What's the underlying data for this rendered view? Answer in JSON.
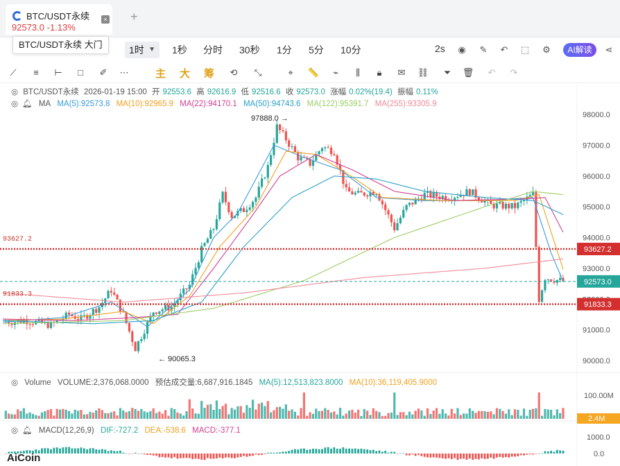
{
  "tab": {
    "symbol": "BTC/USDT永续",
    "price": "92573.0",
    "change": "-1.13%",
    "close": "×",
    "add": "+"
  },
  "tooltip": "BTC/USDT永续 大门",
  "intervals": {
    "active": "1时",
    "items": [
      "1秒",
      "分时",
      "30秒",
      "1分",
      "5分",
      "10分"
    ],
    "refresh": "2s",
    "ai_label": "AI解读"
  },
  "draw_toolbar": {
    "chars": [
      "主",
      "大",
      "筹"
    ]
  },
  "info": {
    "symbol": "BTC/USDT永续",
    "datetime": "2026-01-19 15:00",
    "open_label": "开",
    "open": "92553.6",
    "high_label": "高",
    "high": "92616.9",
    "low_label": "低",
    "low": "92516.6",
    "close_label": "收",
    "close": "92573.0",
    "change_label": "涨幅",
    "change": "0.02%(19.4)",
    "amp_label": "振幅",
    "amp": "0.11%"
  },
  "ma_legend": {
    "label": "MA",
    "items": [
      {
        "text": "MA(5):92573.8",
        "color": "#3a9ad9"
      },
      {
        "text": "MA(10):92965.9",
        "color": "#f0a020"
      },
      {
        "text": "MA(22):94170.1",
        "color": "#d43f8d"
      },
      {
        "text": "MA(50):94743.6",
        "color": "#2aa0c8"
      },
      {
        "text": "MA(122):95391.7",
        "color": "#9ccc65"
      },
      {
        "text": "MA(255):93305.9",
        "color": "#f08a9a"
      }
    ]
  },
  "volume_legend": {
    "label": "Volume",
    "volume": "VOLUME:2,376,068.0000",
    "estimate": "预估成交量:6,687,916.1845",
    "ma5": "MA(5):12,513,823.8000",
    "ma10": "MA(10):36,119,405.9000",
    "axis_top": "100.00M",
    "badge": "2.4M"
  },
  "macd_legend": {
    "label": "MACD(12,26,9)",
    "dif": "DIF:-727.2",
    "dea": "DEA:-538.6",
    "macd": "MACD:-377.1",
    "axis_top": "1000.0",
    "axis_zero": "0.0"
  },
  "brand": "AiCoin",
  "colors": {
    "up": "#26a69a",
    "down": "#ef5350",
    "red_line": "#d32f2f",
    "price_line": "#26a69a",
    "accent": "#5b6cf6"
  },
  "chart_data": {
    "type": "candlestick",
    "interval": "1时",
    "y_ticks": [
      90000,
      91000,
      92000,
      93000,
      94000,
      95000,
      96000,
      97000,
      98000
    ],
    "y_tick_labels": [
      "90000.0",
      "91000.0",
      "92000.0",
      "93000.0",
      "94000.0",
      "95000.0",
      "96000.0",
      "97000.0",
      "98000.0"
    ],
    "ylim": [
      89650,
      98200
    ],
    "high_marker": {
      "value": 97888.0,
      "label": "97888.0"
    },
    "low_marker": {
      "value": 90065.3,
      "label": "90065.3"
    },
    "horizontal_lines": [
      {
        "value": 93627.2,
        "label": "93627.2"
      },
      {
        "value": 91833.3,
        "label": "91833.3"
      }
    ],
    "current_price": {
      "value": 92573.0,
      "label": "92573.0"
    },
    "close_path": [
      [
        0,
        91250
      ],
      [
        8,
        91300
      ],
      [
        16,
        91150
      ],
      [
        22,
        91500
      ],
      [
        26,
        91350
      ],
      [
        32,
        91750
      ],
      [
        36,
        92300
      ],
      [
        40,
        91500
      ],
      [
        44,
        90400
      ],
      [
        50,
        91600
      ],
      [
        56,
        91750
      ],
      [
        62,
        92450
      ],
      [
        66,
        93600
      ],
      [
        70,
        94300
      ],
      [
        73,
        95400
      ],
      [
        76,
        94700
      ],
      [
        80,
        94900
      ],
      [
        84,
        95300
      ],
      [
        88,
        96300
      ],
      [
        91,
        97600
      ],
      [
        94,
        97200
      ],
      [
        98,
        96600
      ],
      [
        102,
        96400
      ],
      [
        106,
        96950
      ],
      [
        110,
        96800
      ],
      [
        114,
        95500
      ],
      [
        118,
        95400
      ],
      [
        124,
        95500
      ],
      [
        130,
        94300
      ],
      [
        134,
        95000
      ],
      [
        140,
        95400
      ],
      [
        148,
        95300
      ],
      [
        155,
        95500
      ],
      [
        162,
        95050
      ],
      [
        170,
        95000
      ],
      [
        176,
        95400
      ],
      [
        178,
        92000
      ],
      [
        180,
        92700
      ],
      [
        186,
        92573
      ]
    ],
    "ma_series": [
      {
        "name": "MA(5)",
        "color": "#3a9ad9",
        "values": [
          [
            0,
            91250
          ],
          [
            20,
            91400
          ],
          [
            36,
            91900
          ],
          [
            48,
            91100
          ],
          [
            62,
            92300
          ],
          [
            70,
            94000
          ],
          [
            78,
            94800
          ],
          [
            90,
            97000
          ],
          [
            100,
            96600
          ],
          [
            112,
            96200
          ],
          [
            124,
            95300
          ],
          [
            140,
            95200
          ],
          [
            160,
            95200
          ],
          [
            176,
            95300
          ],
          [
            182,
            93500
          ],
          [
            186,
            92574
          ]
        ]
      },
      {
        "name": "MA(10)",
        "color": "#f0a020",
        "values": [
          [
            0,
            91300
          ],
          [
            20,
            91350
          ],
          [
            40,
            91600
          ],
          [
            50,
            91200
          ],
          [
            62,
            92100
          ],
          [
            72,
            93700
          ],
          [
            84,
            95000
          ],
          [
            94,
            96800
          ],
          [
            104,
            96700
          ],
          [
            114,
            96100
          ],
          [
            126,
            95300
          ],
          [
            146,
            95200
          ],
          [
            170,
            95200
          ],
          [
            178,
            95400
          ],
          [
            186,
            92966
          ]
        ]
      },
      {
        "name": "MA(22)",
        "color": "#d43f8d",
        "values": [
          [
            0,
            91350
          ],
          [
            24,
            91300
          ],
          [
            44,
            91400
          ],
          [
            58,
            91500
          ],
          [
            70,
            93000
          ],
          [
            82,
            94600
          ],
          [
            92,
            96000
          ],
          [
            104,
            96700
          ],
          [
            116,
            96200
          ],
          [
            130,
            95500
          ],
          [
            150,
            95200
          ],
          [
            172,
            95250
          ],
          [
            180,
            95300
          ],
          [
            186,
            94170
          ]
        ]
      },
      {
        "name": "MA(50)",
        "color": "#2aa0c8",
        "values": [
          [
            0,
            91300
          ],
          [
            30,
            91200
          ],
          [
            50,
            91300
          ],
          [
            66,
            91900
          ],
          [
            80,
            93700
          ],
          [
            96,
            95300
          ],
          [
            110,
            96000
          ],
          [
            124,
            95900
          ],
          [
            140,
            95500
          ],
          [
            160,
            95300
          ],
          [
            176,
            95200
          ],
          [
            186,
            94744
          ]
        ]
      },
      {
        "name": "MA(122)",
        "color": "#9ccc65",
        "values": [
          [
            0,
            91200
          ],
          [
            40,
            91300
          ],
          [
            70,
            91700
          ],
          [
            100,
            92600
          ],
          [
            130,
            94000
          ],
          [
            160,
            95000
          ],
          [
            176,
            95500
          ],
          [
            186,
            95392
          ]
        ]
      },
      {
        "name": "MA(255)",
        "color": "#f08a9a",
        "values": [
          [
            0,
            92200
          ],
          [
            40,
            91900
          ],
          [
            80,
            92200
          ],
          [
            120,
            92700
          ],
          [
            160,
            93000
          ],
          [
            186,
            93306
          ]
        ]
      }
    ],
    "volume_axis": {
      "top_label": "100.00M",
      "top_value": 100000000
    },
    "macd_axis": {
      "labels": [
        "1000.0",
        "0.0"
      ]
    }
  }
}
